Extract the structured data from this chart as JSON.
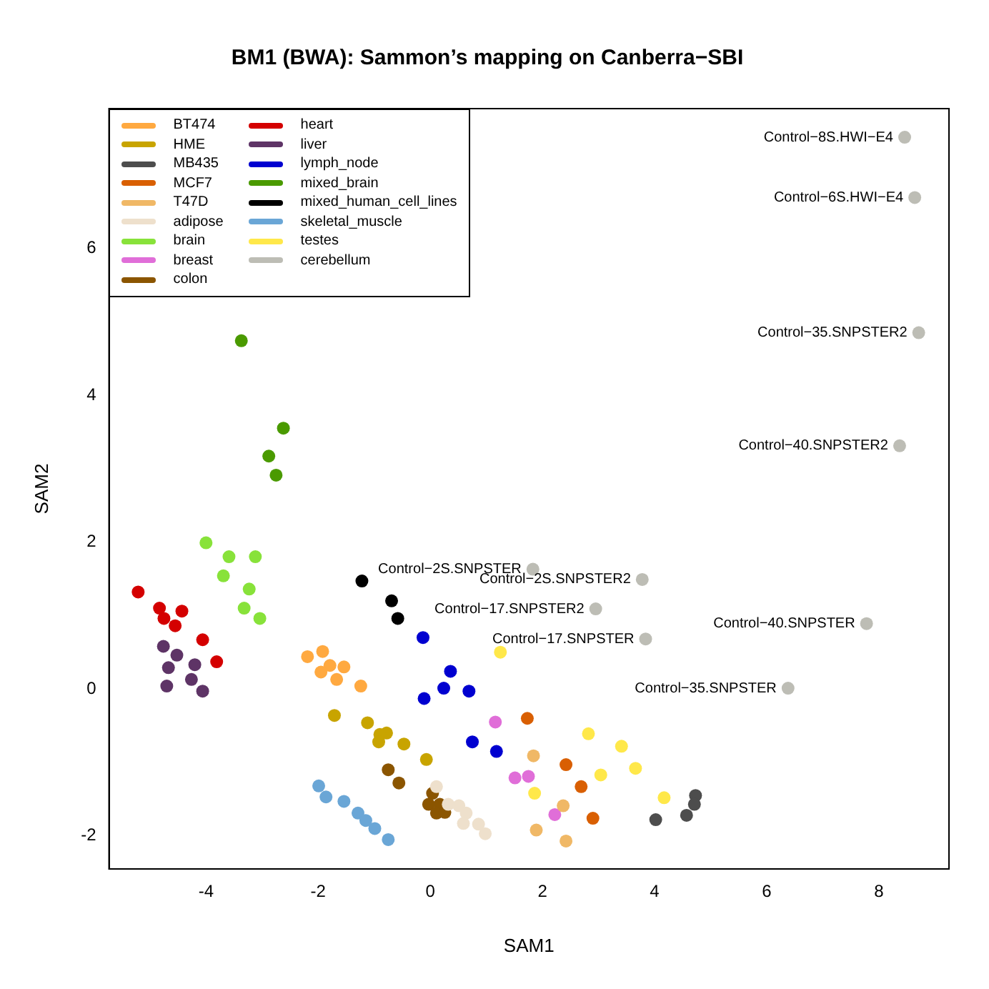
{
  "chart_data": {
    "type": "scatter",
    "title": "BM1 (BWA): Sammon’s mapping on Canberra−SBI",
    "xlabel": "SAM1",
    "ylabel": "SAM2",
    "xlim": [
      -5.73,
      9.25
    ],
    "ylim": [
      -2.45,
      7.9
    ],
    "xticks": [
      -4,
      -2,
      0,
      2,
      4,
      6,
      8
    ],
    "yticks": [
      -2,
      0,
      2,
      4,
      6
    ],
    "grid": false,
    "legend": "top left",
    "marker": "circle",
    "series": [
      {
        "name": "BT474",
        "color": "#ffa940",
        "x": [
          -2.19,
          -1.92,
          -1.79,
          -1.95,
          -1.54,
          -1.67,
          -1.24
        ],
        "values": [
          0.44,
          0.51,
          0.32,
          0.23,
          0.3,
          0.13,
          0.04
        ]
      },
      {
        "name": "HME",
        "color": "#c8a400",
        "x": [
          -1.71,
          -1.12,
          -0.78,
          -0.9,
          -0.92,
          -0.47,
          -0.07
        ],
        "values": [
          -0.36,
          -0.46,
          -0.6,
          -0.62,
          -0.72,
          -0.75,
          -0.96
        ]
      },
      {
        "name": "MB435",
        "color": "#4d4d4d",
        "x": [
          4.73,
          4.71,
          4.57,
          4.02
        ],
        "values": [
          -1.45,
          -1.57,
          -1.72,
          -1.78
        ]
      },
      {
        "name": "MCF7",
        "color": "#d95f02",
        "x": [
          1.73,
          2.42,
          2.69,
          2.9
        ],
        "values": [
          -0.4,
          -1.03,
          -1.33,
          -1.76
        ]
      },
      {
        "name": "T47D",
        "color": "#f0b866",
        "x": [
          1.84,
          2.37,
          1.89,
          2.42
        ],
        "values": [
          -0.91,
          -1.59,
          -1.92,
          -2.07
        ]
      },
      {
        "name": "adipose",
        "color": "#eee0cc",
        "x": [
          0.11,
          0.32,
          0.51,
          0.64,
          0.59,
          0.86,
          0.98
        ],
        "values": [
          -1.33,
          -1.57,
          -1.59,
          -1.69,
          -1.83,
          -1.84,
          -1.97
        ]
      },
      {
        "name": "brain",
        "color": "#88e23a",
        "x": [
          -4.0,
          -3.59,
          -3.12,
          -3.69,
          -3.23,
          -3.32,
          -3.04
        ],
        "values": [
          1.99,
          1.8,
          1.8,
          1.54,
          1.36,
          1.1,
          0.96
        ]
      },
      {
        "name": "breast",
        "color": "#e06ed8",
        "x": [
          1.16,
          1.51,
          1.75,
          2.22
        ],
        "values": [
          -0.45,
          -1.21,
          -1.19,
          -1.71
        ]
      },
      {
        "name": "colon",
        "color": "#8b5500",
        "x": [
          -0.75,
          -0.56,
          0.04,
          -0.03,
          0.17,
          0.11,
          0.26
        ],
        "values": [
          -1.1,
          -1.28,
          -1.42,
          -1.57,
          -1.57,
          -1.69,
          -1.68
        ]
      },
      {
        "name": "heart",
        "color": "#d40000",
        "x": [
          -5.21,
          -4.83,
          -4.75,
          -4.43,
          -4.55,
          -4.06,
          -3.81
        ],
        "values": [
          1.32,
          1.1,
          0.96,
          1.06,
          0.86,
          0.67,
          0.37
        ]
      },
      {
        "name": "liver",
        "color": "#5e3466",
        "x": [
          -4.76,
          -4.52,
          -4.67,
          -4.2,
          -4.26,
          -4.7,
          -4.06
        ],
        "values": [
          0.58,
          0.46,
          0.29,
          0.33,
          0.13,
          0.04,
          -0.03
        ]
      },
      {
        "name": "lymph_node",
        "color": "#0000d0",
        "x": [
          -0.13,
          0.36,
          0.24,
          0.69,
          -0.11,
          0.75,
          1.18
        ],
        "values": [
          0.7,
          0.24,
          0.01,
          -0.03,
          -0.13,
          -0.72,
          -0.85
        ]
      },
      {
        "name": "mixed_brain",
        "color": "#4a9a00",
        "x": [
          -3.37,
          -2.62,
          -2.88,
          -2.75
        ],
        "values": [
          4.74,
          3.55,
          3.17,
          2.91
        ]
      },
      {
        "name": "mixed_human_cell_lines",
        "color": "#000000",
        "x": [
          -1.22,
          -0.69,
          -0.58
        ],
        "values": [
          1.47,
          1.2,
          0.96
        ]
      },
      {
        "name": "skeletal_muscle",
        "color": "#6aa6d6",
        "x": [
          -1.99,
          -1.86,
          -1.54,
          -1.29,
          -1.15,
          -0.99,
          -0.75
        ],
        "values": [
          -1.32,
          -1.47,
          -1.53,
          -1.69,
          -1.79,
          -1.9,
          -2.05
        ]
      },
      {
        "name": "testes",
        "color": "#ffe84a",
        "x": [
          1.25,
          1.86,
          2.82,
          3.04,
          3.41,
          3.66,
          4.17
        ],
        "values": [
          0.5,
          -1.42,
          -0.61,
          -1.17,
          -0.78,
          -1.08,
          -1.48
        ]
      },
      {
        "name": "cerebellum",
        "color": "#bdbdb5",
        "x": [
          8.46,
          8.64,
          8.71,
          8.37,
          1.83,
          3.78,
          2.95,
          7.78,
          3.84,
          6.38
        ],
        "values": [
          7.51,
          6.69,
          4.85,
          3.31,
          1.63,
          1.49,
          1.09,
          0.89,
          0.68,
          0.01
        ]
      }
    ],
    "annotations": [
      {
        "text": "Control−8S.HWI−E4",
        "x": 8.46,
        "y": 7.51
      },
      {
        "text": "Control−6S.HWI−E4",
        "x": 8.64,
        "y": 6.69
      },
      {
        "text": "Control−35.SNPSTER2",
        "x": 8.71,
        "y": 4.85
      },
      {
        "text": "Control−40.SNPSTER2",
        "x": 8.37,
        "y": 3.31
      },
      {
        "text": "Control−2S.SNPSTER",
        "x": 1.83,
        "y": 1.63
      },
      {
        "text": "Control−2S.SNPSTER2",
        "x": 3.78,
        "y": 1.49
      },
      {
        "text": "Control−17.SNPSTER2",
        "x": 2.95,
        "y": 1.09
      },
      {
        "text": "Control−40.SNPSTER",
        "x": 7.78,
        "y": 0.89
      },
      {
        "text": "Control−17.SNPSTER",
        "x": 3.84,
        "y": 0.68
      },
      {
        "text": "Control−35.SNPSTER",
        "x": 6.38,
        "y": 0.01
      }
    ]
  }
}
